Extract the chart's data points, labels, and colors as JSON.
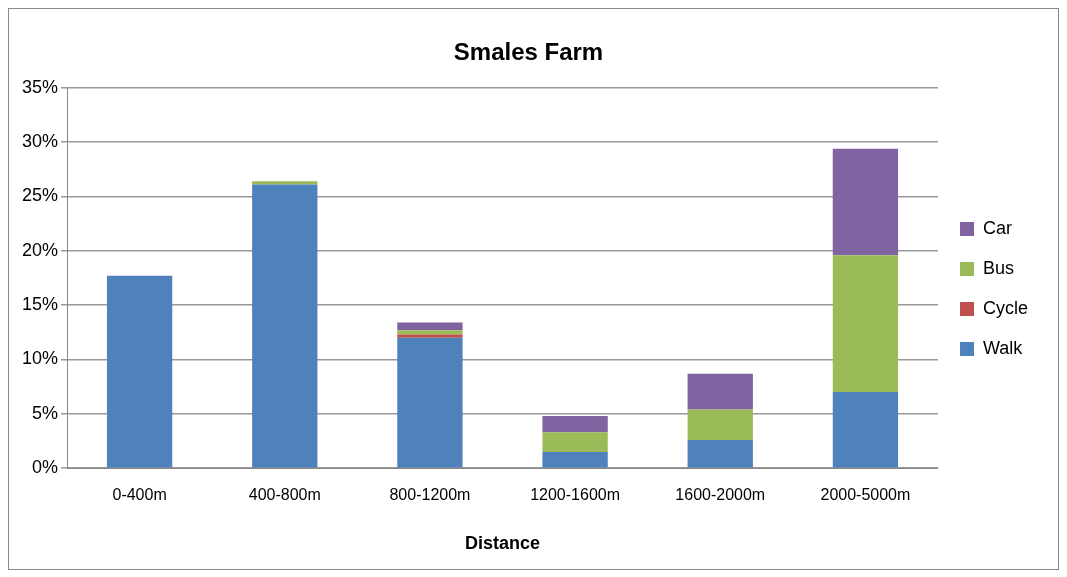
{
  "chart_data": {
    "type": "bar",
    "title": "Smales Farm",
    "xlabel": "Distance",
    "categories": [
      "0-400m",
      "400-800m",
      "800-1200m",
      "1200-1600m",
      "1600-2000m",
      "2000-5000m"
    ],
    "series": [
      {
        "name": "Walk",
        "color": "#4f81bd",
        "values": [
          17.7,
          26.1,
          12.0,
          1.5,
          2.6,
          7.0
        ]
      },
      {
        "name": "Cycle",
        "color": "#c0504d",
        "values": [
          0,
          0,
          0.3,
          0,
          0,
          0
        ]
      },
      {
        "name": "Bus",
        "color": "#9bbb59",
        "values": [
          0,
          0.3,
          0.4,
          1.8,
          2.8,
          12.6
        ]
      },
      {
        "name": "Car",
        "color": "#8064a2",
        "values": [
          0,
          0,
          0.7,
          1.5,
          3.3,
          9.8
        ]
      }
    ],
    "stacked": true,
    "ylim": [
      0,
      35
    ],
    "yticks": [
      {
        "value": 0,
        "label": "0%"
      },
      {
        "value": 5,
        "label": "5%"
      },
      {
        "value": 10,
        "label": "10%"
      },
      {
        "value": 15,
        "label": "15%"
      },
      {
        "value": 20,
        "label": "20%"
      },
      {
        "value": 25,
        "label": "25%"
      },
      {
        "value": 30,
        "label": "30%"
      },
      {
        "value": 35,
        "label": "35%"
      }
    ],
    "grid": "y",
    "legend": "right"
  }
}
